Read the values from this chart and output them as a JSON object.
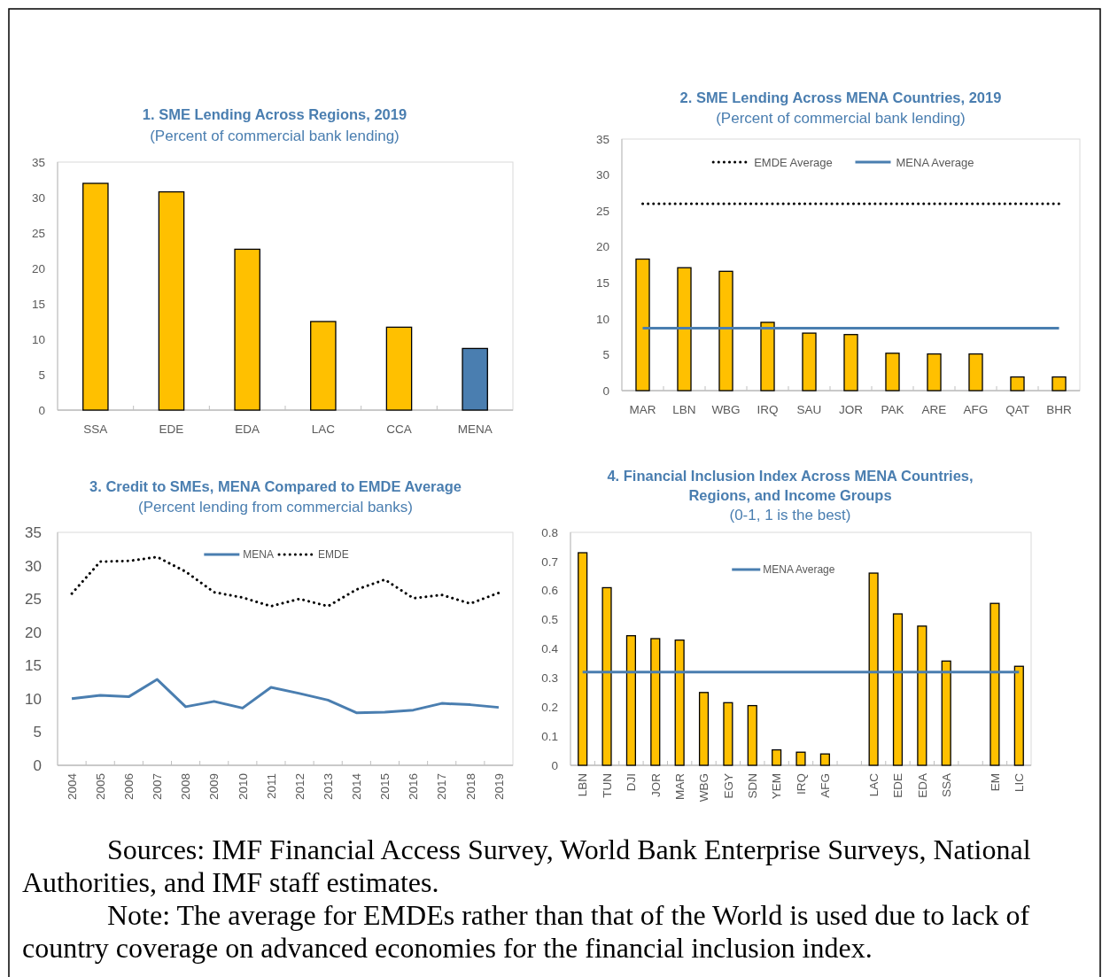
{
  "chart_data": [
    {
      "type": "bar",
      "title": "1. SME Lending Across Regions, 2019",
      "subtitle": "(Percent of commercial bank lending)",
      "categories": [
        "SSA",
        "EDE",
        "EDA",
        "LAC",
        "CCA",
        "MENA"
      ],
      "values": [
        32,
        30.8,
        22.7,
        12.5,
        11.7,
        8.7
      ],
      "colors": [
        "#ffc000",
        "#ffc000",
        "#ffc000",
        "#ffc000",
        "#ffc000",
        "#4a7eb0"
      ],
      "ylim": [
        0,
        35
      ],
      "yticks": [
        0,
        5,
        10,
        15,
        20,
        25,
        30,
        35
      ]
    },
    {
      "type": "bar",
      "title": "2. SME Lending Across MENA Countries, 2019",
      "subtitle": "(Percent of commercial bank lending)",
      "categories": [
        "MAR",
        "LBN",
        "WBG",
        "IRQ",
        "SAU",
        "JOR",
        "PAK",
        "ARE",
        "AFG",
        "QAT",
        "BHR"
      ],
      "series": [
        {
          "color": "#ffc000",
          "values": [
            18.3,
            17.1,
            16.6,
            9.5,
            8.0,
            7.8,
            5.2,
            5.1,
            5.1,
            1.9,
            1.9
          ]
        },
        {
          "type": "line",
          "name": "EMDE Average",
          "color": "#000000",
          "line_style": "dotted",
          "values": [
            26,
            26,
            26,
            26,
            26,
            26,
            26,
            26,
            26,
            26,
            26
          ]
        },
        {
          "type": "line",
          "name": "MENA Average",
          "color": "#4a7eb0",
          "line_style": "solid",
          "values": [
            8.7,
            8.7,
            8.7,
            8.7,
            8.7,
            8.7,
            8.7,
            8.7,
            8.7,
            8.7,
            8.7
          ]
        }
      ],
      "ylim": [
        0,
        35
      ],
      "yticks": [
        0,
        5,
        10,
        15,
        20,
        25,
        30,
        35
      ],
      "legend": "top"
    },
    {
      "type": "line",
      "title": "3. Credit to SMEs, MENA Compared to EMDE Average",
      "subtitle": "(Percent lending from commercial banks)",
      "categories": [
        "2004",
        "2005",
        "2006",
        "2007",
        "2008",
        "2009",
        "2010",
        "2011",
        "2012",
        "2013",
        "2014",
        "2015",
        "2016",
        "2017",
        "2018",
        "2019"
      ],
      "series": [
        {
          "name": "MENA",
          "color": "#4a7eb0",
          "line_style": "solid",
          "values": [
            10.0,
            10.5,
            10.3,
            12.9,
            8.8,
            9.6,
            8.6,
            11.7,
            10.8,
            9.8,
            7.9,
            8.0,
            8.3,
            9.3,
            9.1,
            8.7
          ]
        },
        {
          "name": "EMDE",
          "color": "#000000",
          "line_style": "dotted",
          "values": [
            25.8,
            30.6,
            30.7,
            31.3,
            29.1,
            26.0,
            25.2,
            23.9,
            25.0,
            23.9,
            26.4,
            27.9,
            25.1,
            25.6,
            24.3,
            25.9
          ]
        }
      ],
      "ylim": [
        0,
        35
      ],
      "yticks": [
        0,
        5,
        10,
        15,
        20,
        25,
        30,
        35
      ],
      "legend": "top"
    },
    {
      "type": "bar",
      "title": "4. Financial Inclusion Index Across MENA Countries, Regions, and Income Groups",
      "subtitle": "(0-1, 1 is the best)",
      "categories": [
        "LBN",
        "TUN",
        "DJI",
        "JOR",
        "MAR",
        "WBG",
        "EGY",
        "SDN",
        "YEM",
        "IRQ",
        "AFG",
        null,
        "LAC",
        "EDE",
        "EDA",
        "SSA",
        null,
        "EM",
        "LIC"
      ],
      "series": [
        {
          "color": "#ffc000",
          "values": [
            0.73,
            0.61,
            0.445,
            0.435,
            0.43,
            0.25,
            0.215,
            0.205,
            0.053,
            0.045,
            0.039,
            null,
            0.66,
            0.52,
            0.478,
            0.358,
            null,
            0.556,
            0.34
          ]
        },
        {
          "type": "line",
          "name": "MENA Average",
          "color": "#4a7eb0",
          "line_style": "solid",
          "values": [
            0.32,
            0.32,
            0.32,
            0.32,
            0.32,
            0.32,
            0.32,
            0.32,
            0.32,
            0.32,
            0.32,
            0.32,
            0.32,
            0.32,
            0.32,
            0.32,
            0.32,
            0.32,
            0.32
          ]
        }
      ],
      "ylim": [
        0,
        0.8
      ],
      "yticks": [
        0,
        0.1,
        0.2,
        0.3,
        0.4,
        0.5,
        0.6,
        0.7,
        0.8
      ],
      "legend": "top",
      "annotations": [
        "Sources: IMF Financial Access Survey, World Bank Enterprise Surveys, National Authorities, and IMF staff estimates.",
        "Note: The average for EMDEs rather than that of the World is used due to lack of country coverage on advanced economies for the financial inclusion index."
      ]
    }
  ]
}
